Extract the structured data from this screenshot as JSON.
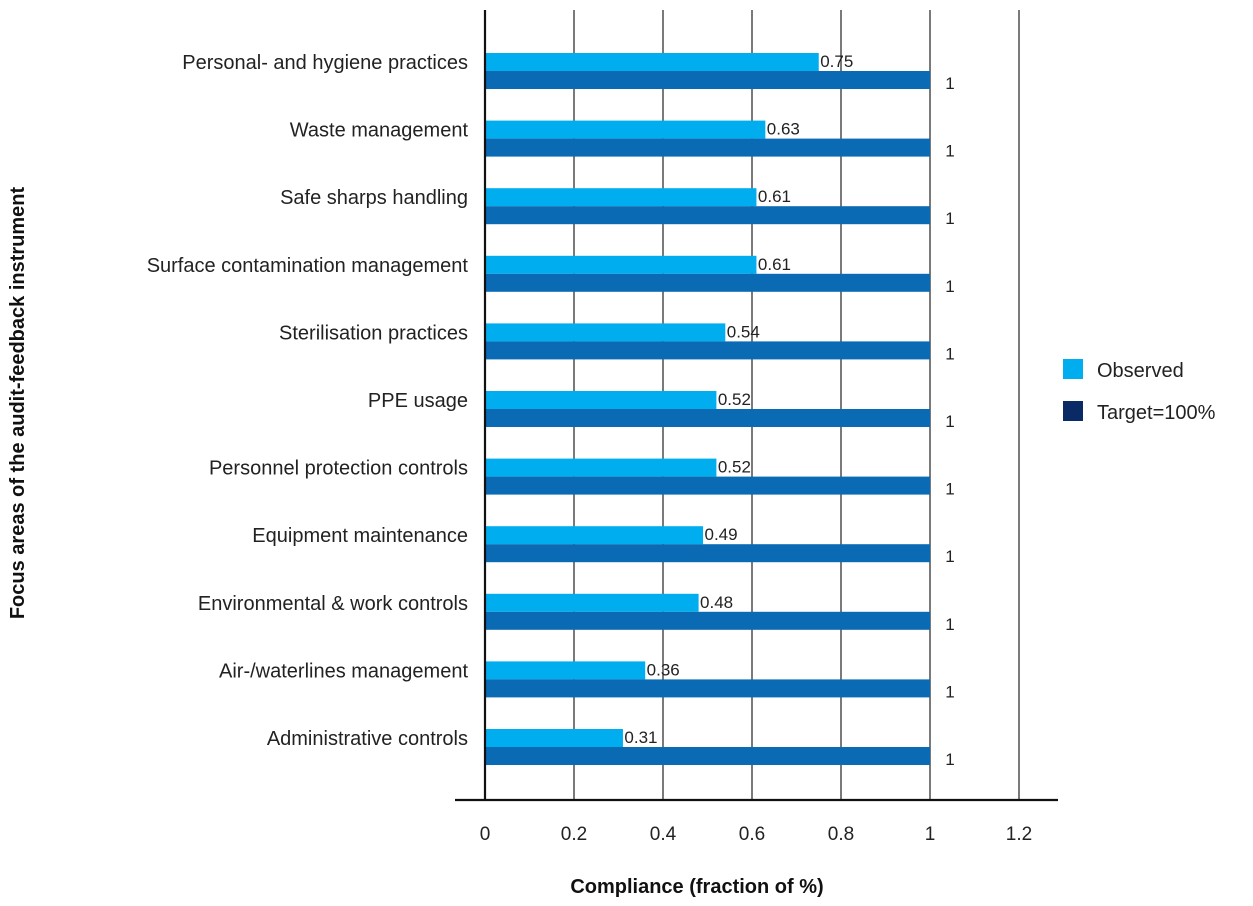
{
  "chart_data": {
    "type": "bar",
    "orientation": "horizontal",
    "xlabel": "Compliance (fraction of %)",
    "ylabel": "Focus areas of the audit-feedback instrument",
    "xlim": [
      0,
      1.2
    ],
    "xticks": [
      "0",
      "0.2",
      "0.4",
      "0.6",
      "0.8",
      "1",
      "1.2"
    ],
    "grid": "vertical",
    "legend_position": "right",
    "categories": [
      "Personal- and hygiene practices",
      "Waste management",
      "Safe sharps handling",
      "Surface contamination management",
      "Sterilisation practices",
      "PPE usage",
      "Personnel protection controls",
      "Equipment maintenance",
      "Environmental & work controls",
      "Air-/waterlines management",
      "Administrative controls"
    ],
    "series": [
      {
        "name": "Observed",
        "color": "#00aeef",
        "values": [
          0.75,
          0.63,
          0.61,
          0.61,
          0.54,
          0.52,
          0.52,
          0.49,
          0.48,
          0.36,
          0.31
        ],
        "labels": [
          "0.75",
          "0.63",
          "0.61",
          "0.61",
          "0.54",
          "0.52",
          "0.52",
          "0.49",
          "0.48",
          "0.36",
          "0.31"
        ]
      },
      {
        "name": "Target=100%",
        "color": "#0b6ab4",
        "legend_color": "#0a2a66",
        "values": [
          1,
          1,
          1,
          1,
          1,
          1,
          1,
          1,
          1,
          1,
          1
        ],
        "labels": [
          "1",
          "1",
          "1",
          "1",
          "1",
          "1",
          "1",
          "1",
          "1",
          "1",
          "1"
        ]
      }
    ]
  }
}
